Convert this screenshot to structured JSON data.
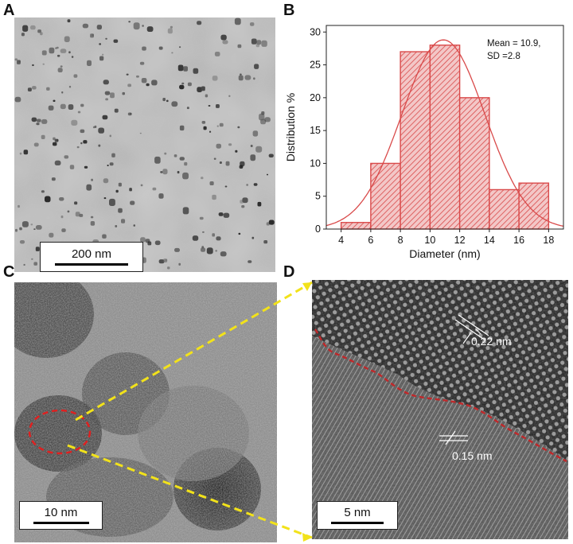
{
  "panels": {
    "A": {
      "letter": "A",
      "scalebar": "200 nm"
    },
    "B": {
      "letter": "B"
    },
    "C": {
      "letter": "C",
      "scalebar": "10 nm"
    },
    "D": {
      "letter": "D",
      "scalebar": "5 nm",
      "annotations": [
        "0.22 nm",
        "0.15 nm"
      ]
    }
  },
  "chart_data": {
    "type": "bar",
    "bin_edges": [
      4,
      6,
      8,
      10,
      12,
      14,
      16,
      18
    ],
    "values": [
      1,
      10,
      27,
      28,
      20,
      6,
      7
    ],
    "xlabel": "Diameter (nm)",
    "ylabel": "Distribution %",
    "xlim": [
      3,
      19
    ],
    "ylim": [
      0,
      31
    ],
    "xticks": [
      4,
      6,
      8,
      10,
      12,
      14,
      16,
      18
    ],
    "yticks": [
      0,
      5,
      10,
      15,
      20,
      25,
      30
    ],
    "annotation_line1": "Mean = 10.9,",
    "annotation_line2": "SD =2.8",
    "fit": {
      "type": "gaussian",
      "mean": 10.9,
      "sd": 2.8,
      "peak": 28.8
    },
    "grid": false,
    "bar_color": "#d94a4a",
    "hatch": "diagonal"
  },
  "colors": {
    "highlight_circle": "#e02020",
    "connector": "#f2e21a",
    "boundary": "#c0282a"
  }
}
